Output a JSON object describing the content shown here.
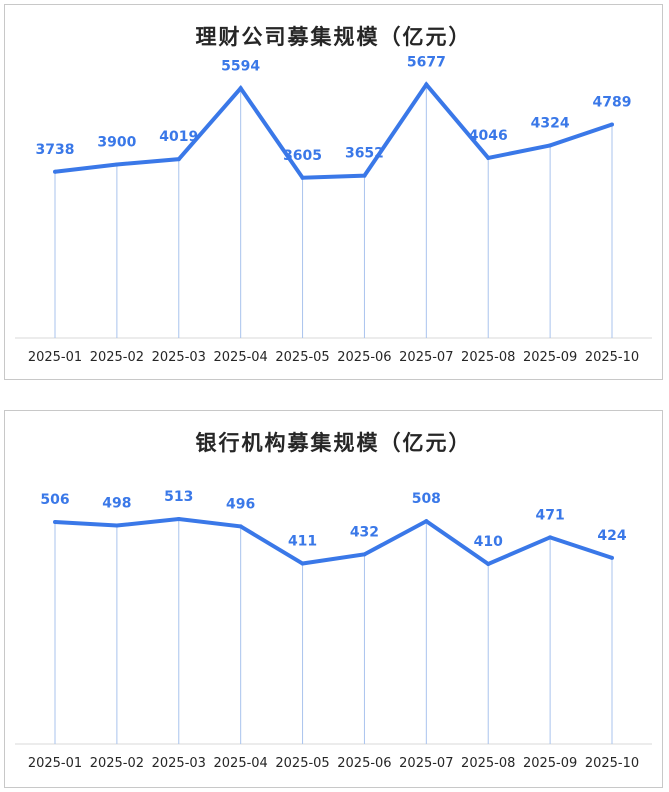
{
  "chart_data": [
    {
      "type": "line",
      "title": "理财公司募集规模（亿元）",
      "categories": [
        "2025-01",
        "2025-02",
        "2025-03",
        "2025-04",
        "2025-05",
        "2025-06",
        "2025-07",
        "2025-08",
        "2025-09",
        "2025-10"
      ],
      "values": [
        3738,
        3900,
        4019,
        5594,
        3605,
        3652,
        5677,
        4046,
        4324,
        4789
      ],
      "ylim": [
        0,
        6000
      ],
      "grid": false,
      "line_color": "#3a78e8",
      "drop_line_color": "#a9c3ee"
    },
    {
      "type": "line",
      "title": "银行机构募集规模（亿元）",
      "categories": [
        "2025-01",
        "2025-02",
        "2025-03",
        "2025-04",
        "2025-05",
        "2025-06",
        "2025-07",
        "2025-08",
        "2025-09",
        "2025-10"
      ],
      "values": [
        506,
        498,
        513,
        496,
        411,
        432,
        508,
        410,
        471,
        424
      ],
      "ylim": [
        0,
        600
      ],
      "grid": false,
      "line_color": "#3a78e8",
      "drop_line_color": "#a9c3ee"
    }
  ]
}
